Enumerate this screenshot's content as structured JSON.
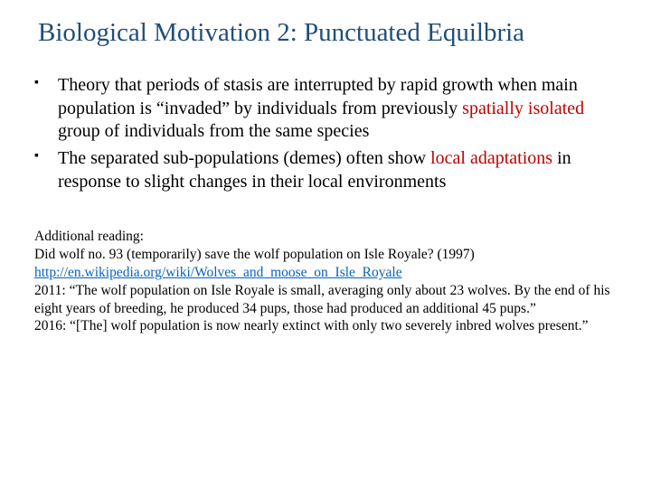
{
  "title_color": "#1f4e79",
  "body_color": "#000000",
  "emphasis_color": "#c00000",
  "link_color": "#0563c1",
  "background_color": "#ffffff",
  "title": "Biological Motivation 2: Punctuated Equilbria",
  "bullets": [
    {
      "pre1": "Theory that periods of stasis are interrupted by rapid growth when main population is “invaded” by individuals from previously ",
      "em1": "spatially isolated",
      "post1": " group of individuals from the same species"
    },
    {
      "pre1": "The separated sub-populations (demes) often show ",
      "em1": "local adaptations",
      "post1": " in response to slight changes in their local environments"
    }
  ],
  "reading": {
    "heading": "Additional reading:",
    "line1": "Did wolf no. 93 (temporarily) save the wolf population on Isle Royale? (1997)",
    "url": "http://en.wikipedia.org/wiki/Wolves_and_moose_on_Isle_Royale",
    "line2": "2011: “The wolf population on Isle Royale is small, averaging only about 23 wolves. By the end of his eight years of breeding, he produced 34 pups, those had produced an additional 45 pups.”",
    "line3": "2016: “[The] wolf population is now nearly extinct with only two severely inbred wolves present.”"
  }
}
